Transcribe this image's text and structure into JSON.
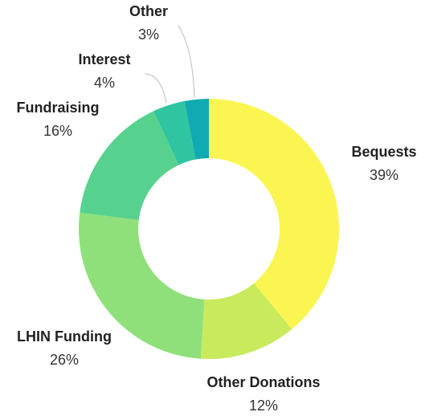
{
  "chart_data": {
    "type": "pie",
    "categories": [
      "Bequests",
      "Other Donations",
      "LHIN Funding",
      "Fundraising",
      "Interest",
      "Other"
    ],
    "values": [
      39,
      12,
      26,
      16,
      4,
      3
    ],
    "value_labels": [
      "39%",
      "12%",
      "26%",
      "16%",
      "4%",
      "3%"
    ],
    "colors": [
      "#fbf552",
      "#c8ea5c",
      "#8fe07b",
      "#56d28e",
      "#2ec5a0",
      "#11aab2"
    ]
  }
}
